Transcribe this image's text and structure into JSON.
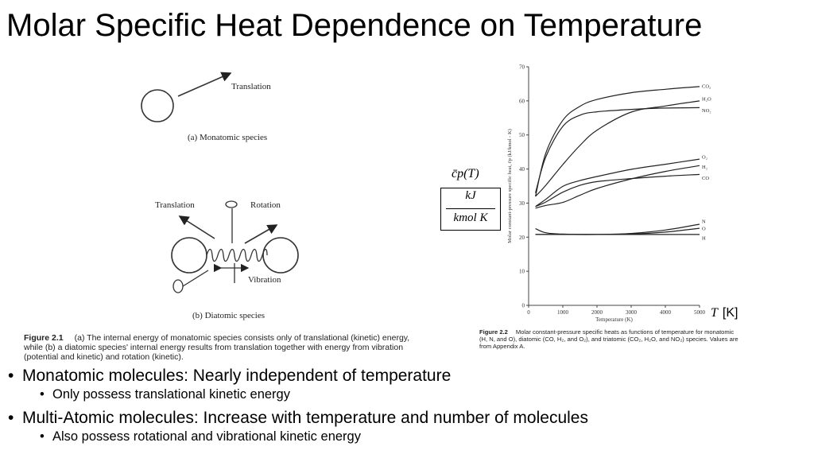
{
  "slide": {
    "title": "Molar Specific Heat Dependence on Temperature",
    "bullets": [
      {
        "text": "Monatomic molecules: Nearly independent of temperature",
        "sub": "Only possess translational kinetic energy"
      },
      {
        "text": "Multi-Atomic molecules: Increase with temperature and number of molecules",
        "sub": "Also possess rotational and vibrational kinetic energy"
      }
    ],
    "y_overlay": {
      "symbol": "c̄p(T)",
      "numerator": "kJ",
      "denominator": "kmol K"
    },
    "x_overlay": {
      "symbol": "T",
      "unit": "[K]"
    }
  },
  "figure1": {
    "panel_a": {
      "arrow_label": "Translation",
      "caption": "(a) Monatomic species"
    },
    "panel_b": {
      "translation": "Translation",
      "rotation": "Rotation",
      "vibration": "Vibration",
      "caption": "(b) Diatomic species"
    },
    "caption_label": "Figure 2.1",
    "caption_text": "(a) The internal energy of monatomic species consists only of translational (kinetic) energy, while (b) a diatomic species' internal energy results from translation together with energy from vibration (potential and kinetic) and rotation (kinetic)."
  },
  "figure2": {
    "caption_label": "Figure 2.2",
    "caption_text": "Molar constant-pressure specific heats as functions of temperature for monatomic (H, N, and O), diatomic (CO, H₂, and O₂), and triatomic (CO₂, H₂O, and NO₂) species. Values are from Appendix A."
  },
  "chart_data": {
    "type": "line",
    "xlabel": "Temperature (K)",
    "ylabel": "Molar constant-pressure specific heat, c̄p (kJ/kmol - K)",
    "xlim": [
      0,
      5000
    ],
    "ylim": [
      0,
      70
    ],
    "x_ticks": [
      0,
      1000,
      2000,
      3000,
      4000,
      5000
    ],
    "y_ticks": [
      0,
      10,
      20,
      30,
      40,
      50,
      60,
      70
    ],
    "grid": false,
    "legend": "labels at right end of lines",
    "series": [
      {
        "name": "CO₂",
        "x": [
          200,
          500,
          1000,
          1500,
          2000,
          3000,
          4000,
          5000
        ],
        "y": [
          32,
          44.6,
          54.3,
          58.4,
          60.4,
          62.4,
          63.4,
          64.2
        ]
      },
      {
        "name": "H₂O",
        "x": [
          200,
          500,
          1000,
          1500,
          2000,
          3000,
          4000,
          5000
        ],
        "y": [
          32,
          35.2,
          41.3,
          46.9,
          51.4,
          56.7,
          58.5,
          60
        ]
      },
      {
        "name": "NO₂",
        "x": [
          200,
          500,
          1000,
          1500,
          2000,
          3000,
          4000,
          5000
        ],
        "y": [
          33,
          43.5,
          52.5,
          55.8,
          56.8,
          57.5,
          57.9,
          58
        ]
      },
      {
        "name": "O₂",
        "x": [
          200,
          500,
          1000,
          1500,
          2000,
          3000,
          4000,
          5000
        ],
        "y": [
          29,
          31.1,
          34.9,
          36.6,
          37.8,
          39.9,
          41.4,
          42.9
        ]
      },
      {
        "name": "H₂",
        "x": [
          200,
          500,
          1000,
          1500,
          2000,
          3000,
          4000,
          5000
        ],
        "y": [
          28.5,
          29.3,
          30.2,
          32.3,
          34.3,
          37.1,
          39.3,
          41
        ]
      },
      {
        "name": "CO",
        "x": [
          200,
          500,
          1000,
          1500,
          2000,
          3000,
          4000,
          5000
        ],
        "y": [
          29,
          30.3,
          33.2,
          35.2,
          36.3,
          37.2,
          37.9,
          38.4
        ]
      },
      {
        "name": "N",
        "x": [
          200,
          500,
          1000,
          2000,
          3000,
          4000,
          5000
        ],
        "y": [
          20.8,
          20.8,
          20.8,
          20.8,
          21.1,
          22.1,
          23.8
        ]
      },
      {
        "name": "O",
        "x": [
          200,
          500,
          1000,
          2000,
          3000,
          4000,
          5000
        ],
        "y": [
          22.5,
          21.3,
          20.9,
          20.8,
          20.9,
          21.5,
          22.6
        ]
      },
      {
        "name": "H",
        "x": [
          200,
          5000
        ],
        "y": [
          20.8,
          20.8
        ]
      }
    ]
  }
}
